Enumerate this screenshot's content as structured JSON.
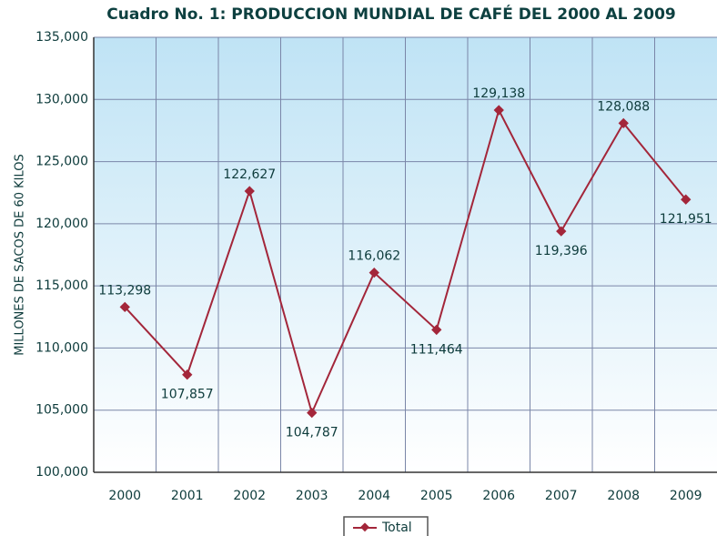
{
  "chart_data": {
    "type": "line",
    "title": "Cuadro No. 1: PRODUCCION MUNDIAL DE CAFÉ DEL 2000 AL 2009",
    "y_label": "MILLONES DE SACOS DE 60 KILOS",
    "categories": [
      "2000",
      "2001",
      "2002",
      "2003",
      "2004",
      "2005",
      "2006",
      "2007",
      "2008",
      "2009"
    ],
    "series": [
      {
        "name": "Total",
        "color": "#a3263a",
        "values": [
          113298,
          107857,
          122627,
          104787,
          116062,
          111464,
          129138,
          119396,
          128088,
          121951
        ],
        "value_labels": [
          "113,298",
          "107,857",
          "122,627",
          "104,787",
          "116,062",
          "111,464",
          "129,138",
          "119,396",
          "128,088",
          "121,951"
        ]
      }
    ],
    "ylim": [
      100000,
      135000
    ],
    "yticks": [
      {
        "value": 100000,
        "label": "100,000"
      },
      {
        "value": 105000,
        "label": "105,000"
      },
      {
        "value": 110000,
        "label": "110,000"
      },
      {
        "value": 115000,
        "label": "115,000"
      },
      {
        "value": 120000,
        "label": "120,000"
      },
      {
        "value": 125000,
        "label": "125,000"
      },
      {
        "value": 130000,
        "label": "130,000"
      },
      {
        "value": 135000,
        "label": "135,000"
      }
    ],
    "grid": true,
    "legend": "bottom"
  }
}
